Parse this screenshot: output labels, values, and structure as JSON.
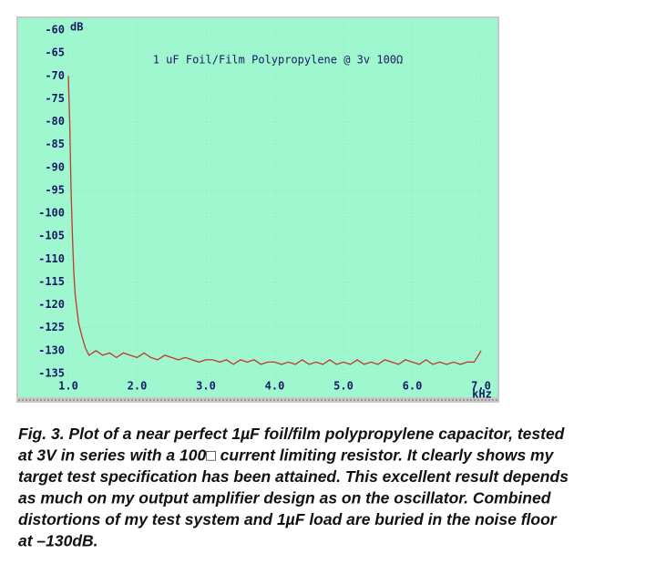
{
  "chart_data": {
    "type": "line",
    "title": "1 uF Foil/Film Polypropylene @ 3v 100Ω",
    "y_label": "dB",
    "x_label": "kHz",
    "x": [
      1.0,
      1.02,
      1.04,
      1.06,
      1.08,
      1.1,
      1.15,
      1.2,
      1.25,
      1.3,
      1.4,
      1.5,
      1.6,
      1.7,
      1.8,
      1.9,
      2.0,
      2.1,
      2.2,
      2.3,
      2.4,
      2.5,
      2.6,
      2.7,
      2.8,
      2.9,
      3.0,
      3.1,
      3.2,
      3.3,
      3.4,
      3.5,
      3.6,
      3.7,
      3.8,
      3.9,
      4.0,
      4.1,
      4.2,
      4.3,
      4.4,
      4.5,
      4.6,
      4.7,
      4.8,
      4.9,
      5.0,
      5.1,
      5.2,
      5.3,
      5.4,
      5.5,
      5.6,
      5.7,
      5.8,
      5.9,
      6.0,
      6.1,
      6.2,
      6.3,
      6.4,
      6.5,
      6.6,
      6.7,
      6.8,
      6.9,
      7.0
    ],
    "values": [
      -70,
      -80,
      -95,
      -105,
      -113,
      -118,
      -124,
      -127,
      -129.5,
      -131,
      -130,
      -131,
      -130.5,
      -131.5,
      -130.5,
      -131,
      -131.5,
      -130.5,
      -131.5,
      -132,
      -131,
      -131.5,
      -132,
      -131.5,
      -132,
      -132.5,
      -132,
      -132,
      -132.5,
      -132,
      -133,
      -132,
      -132.5,
      -132,
      -133,
      -132.5,
      -132.5,
      -133,
      -132.5,
      -133,
      -132,
      -133,
      -132.5,
      -133,
      -132,
      -133,
      -132.5,
      -133,
      -132,
      -133,
      -132.5,
      -133,
      -132,
      -132.5,
      -133,
      -132,
      -132.5,
      -133,
      -132,
      -133,
      -132.5,
      -133,
      -132.5,
      -133,
      -132.5,
      -132.5,
      -130
    ],
    "color": "#c0392b",
    "xlim": [
      1.0,
      7.0
    ],
    "ylim": [
      -135,
      -60
    ],
    "xticks": [
      {
        "value": 1,
        "label": "1.0"
      },
      {
        "value": 2,
        "label": "2.0"
      },
      {
        "value": 3,
        "label": "3.0"
      },
      {
        "value": 4,
        "label": "4.0"
      },
      {
        "value": 5,
        "label": "5.0"
      },
      {
        "value": 6,
        "label": "6.0"
      },
      {
        "value": 7,
        "label": "7.0"
      }
    ],
    "yticks": [
      -60,
      -65,
      -70,
      -75,
      -80,
      -85,
      -90,
      -95,
      -100,
      -105,
      -110,
      -115,
      -120,
      -125,
      -130,
      -135
    ],
    "grid": true
  },
  "caption": [
    "Fig. 3. Plot of a near perfect 1µF foil/film polypropylene capacitor, tested",
    "at 3V in series with a 100□ current limiting resistor. It clearly shows my",
    "target test specification has been attained. This excellent result depends",
    "as much on my output amplifier design as on the oscillator. Combined",
    "distortions of my test system and 1µF load are buried in the noise floor",
    "at –130dB."
  ]
}
